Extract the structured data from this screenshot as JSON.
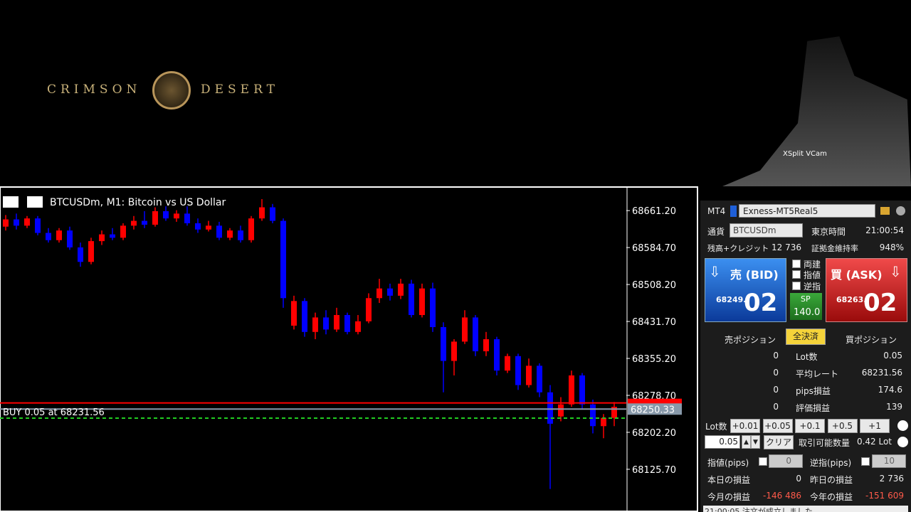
{
  "game": {
    "logo_left": "CRIMSON",
    "logo_right": "DESERT"
  },
  "webcam": {
    "label": "XSplit VCam"
  },
  "chart_window": {
    "title": "BTCUSDm, M1:  Bitcoin vs US Dollar"
  },
  "chart_data": {
    "type": "candlestick",
    "bull_color": "#ff0000",
    "bear_color": "#0000ff",
    "open": [
      68628,
      68643,
      68630,
      68645,
      68615,
      68600,
      68620,
      68585,
      68555,
      68598,
      68612,
      68605,
      68630,
      68640,
      68632,
      68660,
      68645,
      68655,
      68635,
      68622,
      68630,
      68605,
      68620,
      68600,
      68645,
      68668,
      68640,
      68423,
      68474,
      68410,
      68440,
      68415,
      68445,
      68410,
      68432,
      68480,
      68500,
      68485,
      68510,
      68445,
      68500,
      68420,
      68350,
      68390,
      68440,
      68370,
      68395,
      68330,
      68360,
      68300,
      68340,
      68285,
      68235,
      68260,
      68320,
      68260,
      68215,
      68232
    ],
    "high": [
      68652,
      68655,
      68650,
      68650,
      68625,
      68625,
      68628,
      68595,
      68605,
      68620,
      68625,
      68635,
      68650,
      68660,
      68668,
      68670,
      68662,
      68670,
      68645,
      68640,
      68638,
      68625,
      68630,
      68650,
      68685,
      68675,
      68645,
      68485,
      68480,
      68450,
      68455,
      68460,
      68450,
      68445,
      68490,
      68520,
      68510,
      68520,
      68518,
      68510,
      68512,
      68430,
      68395,
      68455,
      68445,
      68410,
      68400,
      68365,
      68365,
      68355,
      68345,
      68300,
      68275,
      68330,
      68325,
      68270,
      68240,
      68265
    ],
    "low": [
      68620,
      68622,
      68625,
      68610,
      68595,
      68595,
      68580,
      68545,
      68550,
      68590,
      68600,
      68600,
      68622,
      68625,
      68628,
      68640,
      68638,
      68630,
      68615,
      68618,
      68600,
      68600,
      68595,
      68595,
      68640,
      68635,
      68460,
      68415,
      68400,
      68395,
      68405,
      68410,
      68405,
      68405,
      68428,
      68470,
      68475,
      68478,
      68440,
      68440,
      68410,
      68285,
      68320,
      68385,
      68360,
      68360,
      68320,
      68325,
      68290,
      68295,
      68275,
      68085,
      68225,
      68255,
      68250,
      68200,
      68190,
      68215
    ],
    "close": [
      68643,
      68630,
      68645,
      68615,
      68600,
      68620,
      68585,
      68555,
      68598,
      68612,
      68605,
      68630,
      68640,
      68632,
      68660,
      68645,
      68655,
      68635,
      68622,
      68630,
      68605,
      68620,
      68600,
      68645,
      68668,
      68640,
      68480,
      68474,
      68410,
      68440,
      68415,
      68445,
      68410,
      68432,
      68480,
      68500,
      68485,
      68510,
      68445,
      68500,
      68420,
      68350,
      68390,
      68440,
      68370,
      68395,
      68330,
      68360,
      68300,
      68340,
      68285,
      68220,
      68260,
      68320,
      68260,
      68215,
      68232,
      68255
    ],
    "ylim": [
      68052,
      68710
    ],
    "yticks": [
      {
        "value": 68661.2,
        "label": "68661.20"
      },
      {
        "value": 68584.7,
        "label": "68584.70"
      },
      {
        "value": 68508.2,
        "label": "68508.20"
      },
      {
        "value": 68431.7,
        "label": "68431.70"
      },
      {
        "value": 68355.2,
        "label": "68355.20"
      },
      {
        "value": 68278.7,
        "label": "68278.70"
      },
      {
        "value": 68202.2,
        "label": "68202.20"
      },
      {
        "value": 68125.7,
        "label": "68125.70"
      }
    ],
    "price_lines": [
      {
        "value": 68263.02,
        "color": "#ff0000"
      },
      {
        "value": 68250.33,
        "label": "68250.33",
        "color": "#8899aa"
      },
      {
        "value": 68231.56,
        "label": "BUY 0.05 at 68231.56",
        "color": "#22cc22"
      }
    ]
  },
  "panel": {
    "platform": "MT4",
    "account": "Exness-MT5Real5",
    "currency_label": "通貨",
    "currency": "BTCUSDm",
    "time_label": "東京時間",
    "time": "21:00:54",
    "balance_label": "残高+クレジット",
    "balance": "12 736",
    "margin_label": "証拠金維持率",
    "margin": "948%",
    "bid": {
      "label": "売 (BID)",
      "price_head": "68249.",
      "price_tail": "02"
    },
    "ask": {
      "label": "買 (ASK)",
      "price_head": "68263.",
      "price_tail": "02"
    },
    "options": [
      "両建",
      "指値",
      "逆指"
    ],
    "spread_label": "SP",
    "spread": "140.0",
    "sell_positions": "売ポジション",
    "close_all": "全決済",
    "buy_positions": "買ポジション",
    "rows": [
      [
        "0",
        "Lot数",
        "0.05"
      ],
      [
        "0",
        "平均レート",
        "68231.56"
      ],
      [
        "0",
        "pips損益",
        "174.6"
      ],
      [
        "0",
        "評価損益",
        "139"
      ]
    ],
    "lot_label": "Lot数",
    "lot_buttons": [
      "+0.01",
      "+0.05",
      "+0.1",
      "+0.5",
      "+1"
    ],
    "lot_input": "0.05",
    "clear": "クリア",
    "tradable_label": "取引可能数量",
    "tradable": "0.42 Lot",
    "limit_label": "指値(pips)",
    "limit": "0",
    "stop_label": "逆指(pips)",
    "stop": "10",
    "today_label": "本日の損益",
    "today": "0",
    "yesterday_label": "昨日の損益",
    "yesterday": "2 736",
    "month_label": "今月の損益",
    "month": "-146 486",
    "year_label": "今年の損益",
    "year": "-151 609",
    "log": "21:00:05 注文が成立しました"
  }
}
